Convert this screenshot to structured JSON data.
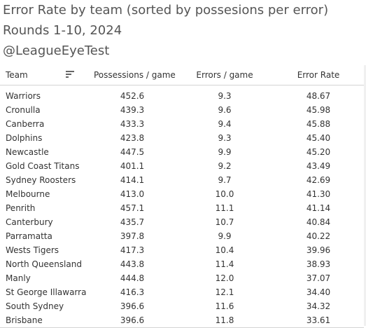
{
  "titles": [
    "Error Rate by team (sorted by possesions per error)",
    "Rounds 1-10, 2024",
    "@LeagueEyeTest"
  ],
  "table": {
    "headers": {
      "team": "Team",
      "possessions": "Possessions / game",
      "errors": "Errors / game",
      "error_rate": "Error Rate"
    },
    "sort_icon": "sort-lines-icon"
  },
  "chart_data": {
    "type": "table",
    "title": "Error Rate by team (sorted by possesions per error)",
    "subtitle": "Rounds 1-10, 2024",
    "columns": [
      "Team",
      "Possessions / game",
      "Errors / game",
      "Error Rate"
    ],
    "rows": [
      [
        "Warriors",
        "452.6",
        "9.3",
        "48.67"
      ],
      [
        "Cronulla",
        "439.3",
        "9.6",
        "45.98"
      ],
      [
        "Canberra",
        "433.3",
        "9.4",
        "45.88"
      ],
      [
        "Dolphins",
        "423.8",
        "9.3",
        "45.40"
      ],
      [
        "Newcastle",
        "447.5",
        "9.9",
        "45.20"
      ],
      [
        "Gold Coast Titans",
        "401.1",
        "9.2",
        "43.49"
      ],
      [
        "Sydney Roosters",
        "414.1",
        "9.7",
        "42.69"
      ],
      [
        "Melbourne",
        "413.0",
        "10.0",
        "41.30"
      ],
      [
        "Penrith",
        "457.1",
        "11.1",
        "41.14"
      ],
      [
        "Canterbury",
        "435.7",
        "10.7",
        "40.84"
      ],
      [
        "Parramatta",
        "397.8",
        "9.9",
        "40.22"
      ],
      [
        "Wests Tigers",
        "417.3",
        "10.4",
        "39.96"
      ],
      [
        "North Queensland",
        "443.8",
        "11.4",
        "38.93"
      ],
      [
        "Manly",
        "444.8",
        "12.0",
        "37.07"
      ],
      [
        "St George Illawarra",
        "416.3",
        "12.1",
        "34.40"
      ],
      [
        "South Sydney",
        "396.6",
        "11.6",
        "34.32"
      ],
      [
        "Brisbane",
        "396.6",
        "11.8",
        "33.61"
      ]
    ]
  }
}
